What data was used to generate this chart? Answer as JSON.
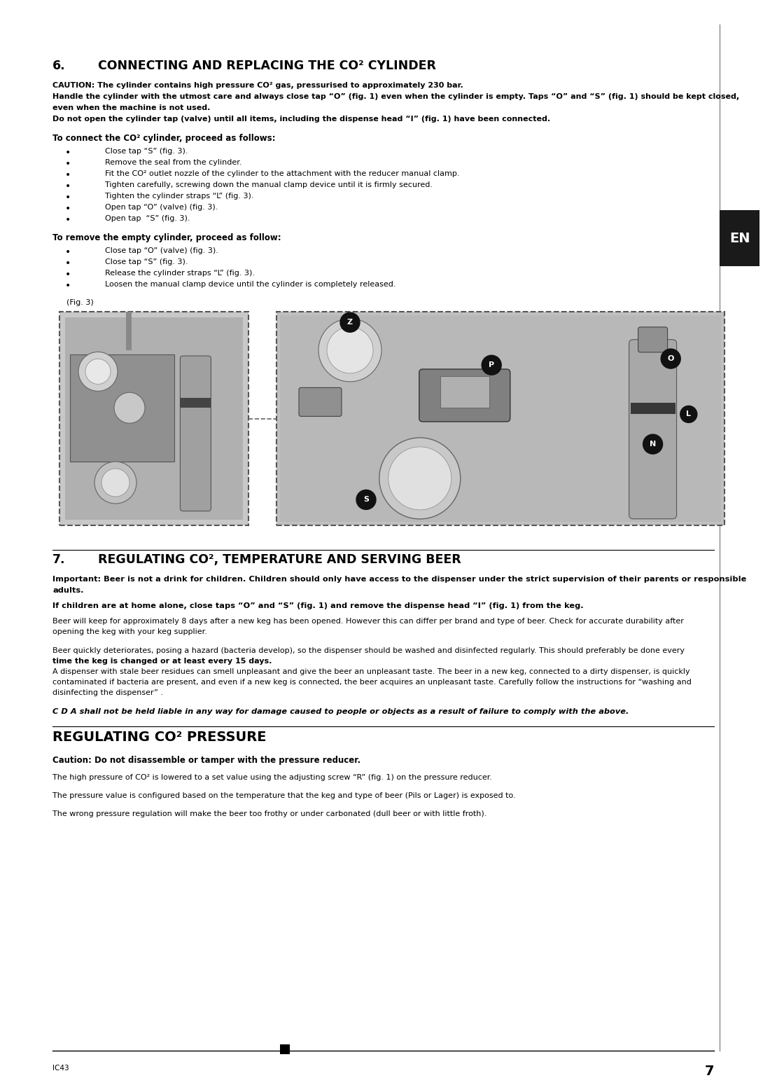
{
  "page_bg": "#ffffff",
  "text_color": "#000000",
  "page_number": "7",
  "footer_left": "IC43",
  "section6_number": "6.",
  "section6_title": "CONNECTING AND REPLACING THE CO² CYLINDER",
  "caution_line1": "CAUTION: The cylinder contains high pressure CO² gas, pressurised to approximately 230 bar.",
  "caution_line2": "Handle the cylinder with the utmost care and always close tap “O” (fig. 1) even when the cylinder is empty. Taps “O” and “S” (fig. 1) should be kept closed,",
  "caution_line3": "even when the machine is not used.",
  "caution_line4": "Do not open the cylinder tap (valve) until all items, including the dispense head “I” (fig. 1) have been connected.",
  "connect_heading": "To connect the CO² cylinder, proceed as follows:",
  "connect_bullets": [
    "Close tap “S” (fig. 3).",
    "Remove the seal from the cylinder.",
    "Fit the CO² outlet nozzle of the cylinder to the attachment with the reducer manual clamp.",
    "Tighten carefully, screwing down the manual clamp device until it is firmly secured.",
    "Tighten the cylinder straps “L” (fig. 3).",
    "Open tap “O” (valve) (fig. 3).",
    "Open tap  “S” (fig. 3)."
  ],
  "remove_heading": "To remove the empty cylinder, proceed as follow:",
  "remove_bullets": [
    "Close tap “O” (valve) (fig. 3).",
    "Close tap “S” (fig. 3).",
    "Release the cylinder straps “L” (fig. 3).",
    "Loosen the manual clamp device until the cylinder is completely released."
  ],
  "fig3_label": "(Fig. 3)",
  "section7_number": "7.",
  "section7_title": "REGULATING CO², TEMPERATURE AND SERVING BEER",
  "important_line1": "Important: Beer is not a drink for children. Children should only have access to the dispenser under the strict supervision of their parents or responsible",
  "important_line2": "adults.",
  "important_line3": "If children are at home alone, close taps “O” and “S” (fig. 1) and remove the dispense head “I” (fig. 1) from the keg.",
  "para1_line1": "Beer will keep for approximately 8 days after a new keg has been opened. However this can differ per brand and type of beer. Check for accurate durability after",
  "para1_line2": "opening the keg with your keg supplier.",
  "para2_line1": "Beer quickly deteriorates, posing a hazard (bacteria develop), so the dispenser should be washed and disinfected regularly. This should preferably be done every",
  "para2_line2": "time the keg is changed or at least every 15 days.",
  "para2_line3": "A dispenser with stale beer residues can smell unpleasant and give the beer an unpleasant taste. The beer in a new keg, connected to a dirty dispenser, is quickly",
  "para2_line4": "contaminated if bacteria are present, and even if a new keg is connected, the beer acquires an unpleasant taste. Carefully follow the instructions for “washing and",
  "para2_line5": "disinfecting the dispenser” .",
  "liability": "C D A shall not be held liable in any way for damage caused to people or objects as a result of failure to comply with the above.",
  "reg_co2_title": "REGULATING CO² PRESSURE",
  "reg_co2_caution": "Caution: Do not disassemble or tamper with the pressure reducer.",
  "reg_co2_para1": "The high pressure of CO² is lowered to a set value using the adjusting screw “R” (fig. 1) on the pressure reducer.",
  "reg_co2_para2": "The pressure value is configured based on the temperature that the keg and type of beer (Pils or Lager) is exposed to.",
  "reg_co2_para3": "The wrong pressure regulation will make the beer too frothy or under carbonated (dull beer or with little froth).",
  "en_tab_color": "#1a1a1a",
  "en_text_color": "#ffffff"
}
